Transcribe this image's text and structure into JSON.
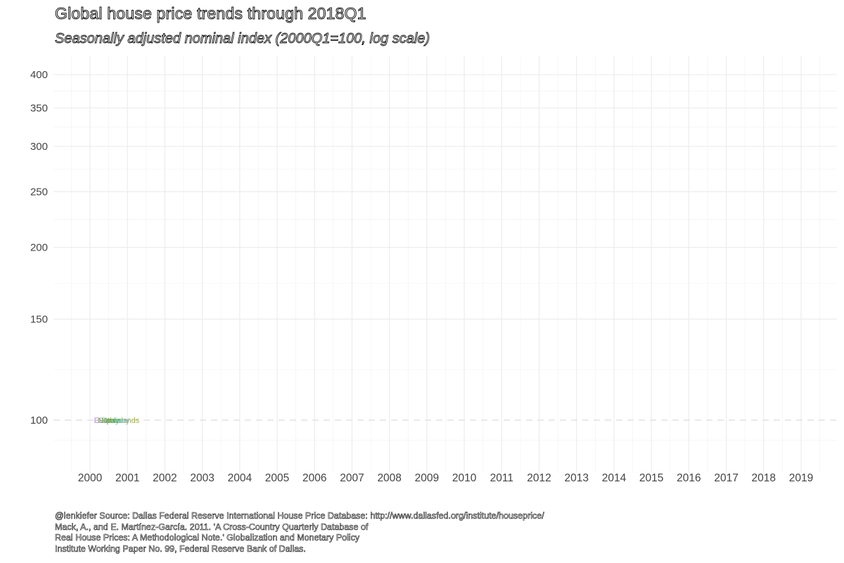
{
  "title": "Global house price trends through 2018Q1",
  "subtitle": "Seasonally adjusted nominal index (2000Q1=100, log scale)",
  "caption_lines": [
    "@lenkiefer Source: Dallas Federal Reserve International House Price Database: http://www.dallasfed.org/institute/houseprice/",
    "Mack, A., and E. Martínez-García. 2011. 'A Cross-Country Quarterly Database of",
    "Real House Prices: A Methodological Note.' Globalization and Monetary Policy",
    "Institute Working Paper No. 99, Federal Reserve Bank of Dallas."
  ],
  "chart_data": {
    "type": "line",
    "title": "Global house price trends through 2018Q1",
    "subtitle": "Seasonally adjusted nominal index (2000Q1=100, log scale)",
    "xlabel": "",
    "ylabel": "",
    "x_ticks": [
      "2000",
      "2001",
      "2002",
      "2003",
      "2004",
      "2005",
      "2006",
      "2007",
      "2008",
      "2009",
      "2010",
      "2011",
      "2012",
      "2013",
      "2014",
      "2015",
      "2016",
      "2017",
      "2018",
      "2019"
    ],
    "xlim": [
      1999.5,
      2019.9
    ],
    "y_scale": "log",
    "y_ticks": [
      100,
      150,
      200,
      250,
      300,
      350,
      400
    ],
    "ylim": [
      85,
      420
    ],
    "grid": true,
    "reference_line": {
      "y": 100,
      "style": "dashed"
    },
    "series": [
      {
        "label": "Euro",
        "color": "#b67ad8",
        "x": [
          2000.2
        ],
        "y": [
          100
        ]
      },
      {
        "label": "Germany",
        "color": "#5aa7d6",
        "x": [
          2000.3
        ],
        "y": [
          100
        ]
      },
      {
        "label": "Italy",
        "color": "#4bb8b0",
        "x": [
          2000.5
        ],
        "y": [
          100
        ]
      },
      {
        "label": "Spain",
        "color": "#3db15e",
        "x": [
          2000.4
        ],
        "y": [
          100
        ]
      },
      {
        "label": "Netherlands",
        "color": "#9aa53c",
        "x": [
          2000.3
        ],
        "y": [
          100
        ]
      }
    ]
  }
}
